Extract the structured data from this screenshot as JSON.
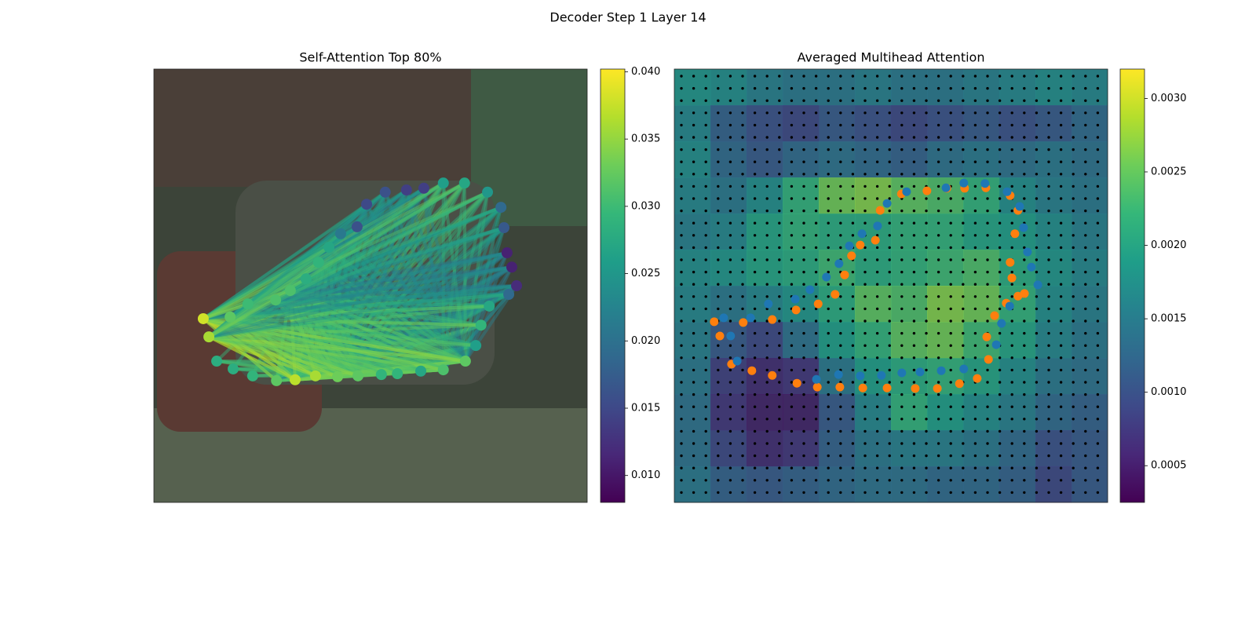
{
  "title": "Decoder Step 1 Layer 14",
  "chart_data": [
    {
      "type": "graph-scatter",
      "title": "Self-Attention Top 80%",
      "xlim": [
        0,
        100
      ],
      "ylim": [
        100,
        0
      ],
      "x": [
        14.5,
        18.3,
        22.8,
        28.3,
        32.6,
        37.3,
        42.4,
        47.1,
        52.5,
        56.2,
        61.6,
        66.8,
        71.9,
        74.3,
        75.5,
        77.4,
        81.9,
        83.7,
        82.6,
        81.5,
        80.8,
        80.1,
        77.0,
        71.7,
        66.8,
        62.3,
        58.3,
        53.4,
        49.1,
        46.9,
        43.1,
        40.4,
        38.0,
        35.1,
        31.5,
        28.1,
        21.7,
        17.6,
        11.4,
        12.7
      ],
      "y": [
        32.6,
        30.8,
        29.2,
        28.1,
        28.3,
        29.2,
        29.0,
        29.2,
        29.5,
        29.7,
        30.3,
        30.6,
        32.6,
        36.2,
        40.9,
        45.3,
        48.0,
        50.0,
        54.3,
        57.6,
        63.4,
        68.1,
        71.6,
        73.7,
        73.7,
        72.5,
        72.1,
        71.6,
        68.8,
        63.6,
        62.0,
        58.9,
        55.4,
        51.6,
        48.9,
        46.7,
        45.8,
        42.8,
        42.4,
        38.2
      ],
      "values": [
        0.028,
        0.028,
        0.029,
        0.032,
        0.037,
        0.036,
        0.033,
        0.032,
        0.029,
        0.029,
        0.027,
        0.031,
        0.032,
        0.026,
        0.029,
        0.027,
        0.019,
        0.012,
        0.011,
        0.011,
        0.017,
        0.019,
        0.025,
        0.027,
        0.026,
        0.014,
        0.014,
        0.016,
        0.015,
        0.016,
        0.021,
        0.027,
        0.029,
        0.028,
        0.031,
        0.031,
        0.03,
        0.032,
        0.038,
        0.036
      ],
      "clim": [
        0.008,
        0.0402
      ],
      "cticks": [
        {
          "value": 0.01,
          "label": "0.010"
        },
        0.015,
        {
          "value": 0.02,
          "label": "0.020"
        },
        0.025,
        {
          "value": 0.03,
          "label": "0.030"
        },
        0.035,
        {
          "value": 0.04,
          "label": "0.040"
        }
      ],
      "colormap": "viridis"
    },
    {
      "type": "heatmap-scatter",
      "title": "Averaged Multihead Attention",
      "xlim": [
        0,
        100
      ],
      "ylim": [
        100,
        0
      ],
      "values": [
        [
          0.0018,
          0.0017,
          0.0015,
          0.0014,
          0.0014,
          0.0015,
          0.0014,
          0.0014,
          0.0015,
          0.0016,
          0.0017,
          0.0016
        ],
        [
          0.0016,
          0.0011,
          0.0009,
          0.0008,
          0.001,
          0.0009,
          0.0008,
          0.0009,
          0.001,
          0.0009,
          0.001,
          0.0012
        ],
        [
          0.0017,
          0.0012,
          0.001,
          0.0012,
          0.0013,
          0.0012,
          0.0011,
          0.0013,
          0.0014,
          0.0013,
          0.0014,
          0.0013
        ],
        [
          0.0016,
          0.0014,
          0.0017,
          0.0022,
          0.0026,
          0.0027,
          0.0025,
          0.0024,
          0.0022,
          0.0017,
          0.0015,
          0.0014
        ],
        [
          0.0015,
          0.0016,
          0.002,
          0.0022,
          0.0021,
          0.0021,
          0.0022,
          0.0022,
          0.002,
          0.0019,
          0.0017,
          0.0015
        ],
        [
          0.0017,
          0.0018,
          0.002,
          0.0021,
          0.0023,
          0.0021,
          0.0022,
          0.0023,
          0.0024,
          0.0021,
          0.0018,
          0.0016
        ],
        [
          0.0016,
          0.0014,
          0.0016,
          0.0018,
          0.0021,
          0.0025,
          0.0024,
          0.0027,
          0.0026,
          0.0022,
          0.0017,
          0.0015
        ],
        [
          0.0015,
          0.001,
          0.0008,
          0.0013,
          0.0019,
          0.0022,
          0.0025,
          0.0026,
          0.0023,
          0.002,
          0.0016,
          0.0014
        ],
        [
          0.0014,
          0.0007,
          0.0005,
          0.0006,
          0.0014,
          0.0019,
          0.0021,
          0.0022,
          0.002,
          0.0017,
          0.0014,
          0.0013
        ],
        [
          0.0013,
          0.0006,
          0.0004,
          0.0004,
          0.001,
          0.0016,
          0.0022,
          0.0019,
          0.0017,
          0.0015,
          0.0012,
          0.0011
        ],
        [
          0.0013,
          0.0008,
          0.0005,
          0.0006,
          0.0011,
          0.0014,
          0.0015,
          0.0015,
          0.0014,
          0.0012,
          0.0009,
          0.001
        ],
        [
          0.0014,
          0.0011,
          0.001,
          0.0011,
          0.0012,
          0.0013,
          0.0013,
          0.0012,
          0.0012,
          0.0011,
          0.0008,
          0.001
        ]
      ],
      "clim": [
        0.00025,
        0.0032
      ],
      "cticks": [
        0.0005,
        {
          "value": 0.001,
          "label": "0.0010"
        },
        0.0015,
        {
          "value": 0.002,
          "label": "0.0020"
        },
        0.0025,
        {
          "value": 0.003,
          "label": "0.0030"
        }
      ],
      "colormap": "viridis",
      "points": [
        {
          "color": "#ff7f0e",
          "x": [
            9.2,
            10.5,
            13.2,
            17.9,
            22.6,
            28.3,
            33.0,
            38.2,
            43.5,
            49.1,
            55.6,
            60.7,
            65.8,
            69.9,
            72.5,
            72.1,
            73.9,
            76.6,
            79.3,
            80.8,
            77.9,
            77.5,
            78.6,
            79.3,
            77.5,
            71.9,
            67.0,
            62.9,
            58.3,
            52.4,
            47.5,
            46.4,
            42.9,
            40.9,
            39.3,
            37.1,
            33.2,
            28.1,
            22.6,
            15.9
          ],
          "y": [
            41.7,
            38.4,
            31.9,
            30.4,
            29.3,
            27.5,
            26.6,
            26.6,
            26.4,
            26.4,
            26.3,
            26.3,
            27.4,
            28.6,
            33.0,
            38.2,
            43.1,
            46.0,
            47.6,
            48.2,
            51.8,
            55.4,
            62.0,
            67.4,
            70.8,
            72.6,
            72.5,
            72.5,
            71.9,
            71.2,
            67.4,
            60.5,
            59.4,
            56.9,
            52.5,
            48.0,
            45.8,
            44.4,
            42.2,
            41.5
          ]
        },
        {
          "color": "#1f77b4",
          "x": [
            11.4,
            13.0,
            14.5,
            32.8,
            37.9,
            42.9,
            47.8,
            52.5,
            56.7,
            61.6,
            66.8,
            74.3,
            75.5,
            77.4,
            83.9,
            82.4,
            81.5,
            80.6,
            79.7,
            76.8,
            71.7,
            66.8,
            62.7,
            53.6,
            49.1,
            46.9,
            43.3,
            40.4,
            38.0,
            35.1,
            31.3,
            27.9,
            21.7,
            17.6
          ],
          "y": [
            42.6,
            38.4,
            32.6,
            28.4,
            29.5,
            29.2,
            29.3,
            29.9,
            30.1,
            30.4,
            30.8,
            36.4,
            41.3,
            45.3,
            50.2,
            54.3,
            57.8,
            63.4,
            68.3,
            71.7,
            73.6,
            73.7,
            72.6,
            71.7,
            69.0,
            63.8,
            62.0,
            59.2,
            55.1,
            52.0,
            49.1,
            46.9,
            45.8,
            42.6
          ]
        }
      ]
    }
  ]
}
